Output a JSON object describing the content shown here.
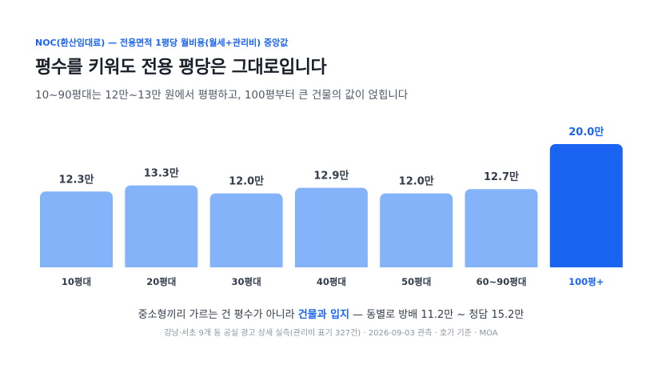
{
  "header": {
    "kicker": "NOC(환산임대료) — 전용면적 1평당 월비용(월세+관리비) 중앙값",
    "title": "평수를 키워도 전용 평당은 그대로입니다",
    "subtitle": "10~90평대는 12만~13만 원에서 평평하고, 100평부터 큰 건물의 값이 얹힙니다"
  },
  "note": {
    "before": "중소형끼리 가르는 건 평수가 아니라 ",
    "highlight": "건물과 입지",
    "after": " — 동별로 방배 11.2만 ~ 청담 15.2만"
  },
  "source": "강남·서초 9개 동 공실 광고 상세 실측(관리비 표기 327건) · 2026-09-03 관측 · 호가 기준 · MOA",
  "colors": {
    "bar": "#84b3fa",
    "highlight_bar": "#1b64f2",
    "label": "#333d4b",
    "highlight_label": "#1b64f2"
  },
  "chart_data": {
    "type": "bar",
    "title": "",
    "xlabel": "",
    "ylabel": "",
    "ylim": [
      0,
      20
    ],
    "grid": false,
    "legend": "none",
    "categories": [
      "10평대",
      "20평대",
      "30평대",
      "40평대",
      "50평대",
      "60~90평대",
      "100평+"
    ],
    "values": [
      12.3,
      13.3,
      12.0,
      12.9,
      12.0,
      12.7,
      20.0
    ],
    "value_labels": [
      "12.3만",
      "13.3만",
      "12.0만",
      "12.9만",
      "12.0만",
      "12.7만",
      "20.0만"
    ],
    "highlight_index": 6
  }
}
